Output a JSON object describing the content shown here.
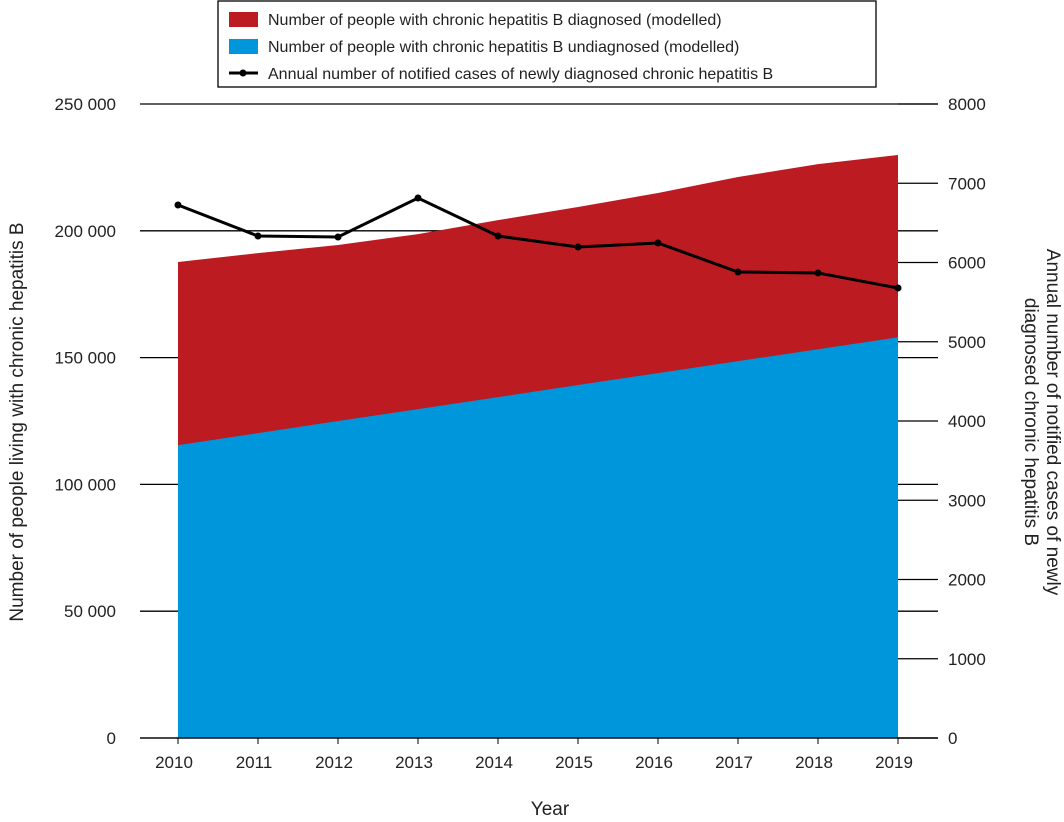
{
  "chart_data": {
    "type": "area",
    "xlabel": "Year",
    "ylabel": "Number of people living with chronic hepatitis B",
    "y2label": [
      "Annual number of notified cases of newly",
      "diagnosed chronic hepatitis B"
    ],
    "ylim": [
      0,
      250000
    ],
    "y2lim": [
      0,
      8000
    ],
    "yticks": [
      "0",
      "50 000",
      "100 000",
      "150 000",
      "200 000",
      "250 000"
    ],
    "y2ticks": [
      "0",
      "1000",
      "2000",
      "3000",
      "4000",
      "5000",
      "6000",
      "7000",
      "8000"
    ],
    "categories": [
      "2010",
      "2011",
      "2012",
      "2013",
      "2014",
      "2015",
      "2016",
      "2017",
      "2018",
      "2019"
    ],
    "grid": true,
    "legend_position": "top",
    "series": [
      {
        "name": "Number of people with chronic hepatitis B diagnosed (modelled)",
        "type": "stacked-area-top",
        "color": "#bc1b21",
        "values_total": [
          187700,
          191200,
          194400,
          198700,
          204200,
          209400,
          214900,
          221200,
          226300,
          229900
        ]
      },
      {
        "name": "Number of people with chronic hepatitis B undiagnosed (modelled)",
        "type": "area",
        "color": "#0096db",
        "values": [
          115500,
          120200,
          125000,
          129700,
          134400,
          139200,
          143900,
          148600,
          153300,
          158000
        ]
      },
      {
        "name": "Annual number of notified cases of newly diagnosed chronic hepatitis B",
        "type": "line",
        "axis": "right",
        "color": "#000000",
        "values": [
          6726,
          6334,
          6322,
          6814,
          6334,
          6196,
          6246,
          5880,
          5868,
          5678
        ]
      }
    ]
  }
}
